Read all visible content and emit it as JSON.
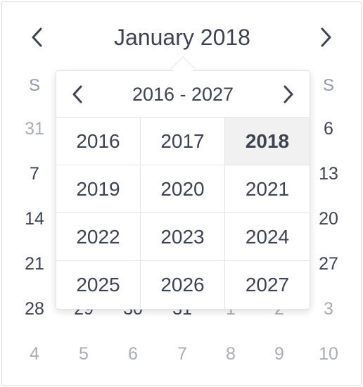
{
  "calendar": {
    "title": "January 2018",
    "prev_icon": "chevron-left-icon",
    "next_icon": "chevron-right-icon",
    "weekdays": [
      "S",
      "S"
    ],
    "rows": [
      [
        "31",
        "",
        "",
        "",
        "",
        "",
        "6"
      ],
      [
        "7",
        "",
        "",
        "",
        "",
        "",
        "13"
      ],
      [
        "14",
        "",
        "",
        "",
        "",
        "",
        "20"
      ],
      [
        "21",
        "",
        "",
        "",
        "",
        "",
        "27"
      ],
      [
        "28",
        "29",
        "30",
        "31",
        "1",
        "2",
        "3"
      ],
      [
        "4",
        "5",
        "6",
        "7",
        "8",
        "9",
        "10"
      ]
    ]
  },
  "year_picker": {
    "title": "2016 - 2027",
    "selected": "2018",
    "years": [
      "2016",
      "2017",
      "2018",
      "2019",
      "2020",
      "2021",
      "2022",
      "2023",
      "2024",
      "2025",
      "2026",
      "2027"
    ]
  },
  "colors": {
    "text": "#3d4350",
    "muted": "#a9adb5",
    "weekday": "#8f98ad",
    "selected_bg": "#f1f1f2",
    "border": "#e2e3e6"
  }
}
